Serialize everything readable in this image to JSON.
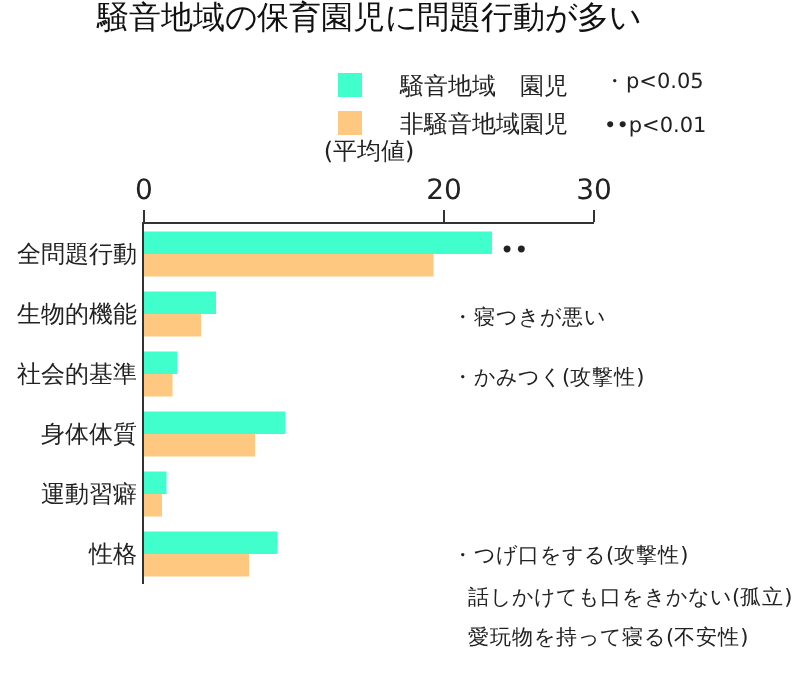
{
  "chart_data": {
    "type": "bar",
    "orientation": "horizontal",
    "title": "騒音地域の保育園児に問題行動が多い",
    "xlabel": "(平均値)",
    "categories": [
      "全問題行動",
      "生物的機能",
      "社会的基準",
      "身体体質",
      "運動習癖",
      "性格"
    ],
    "series": [
      {
        "name": "騒音地域　園児",
        "color": "#40ffcc",
        "values": [
          23.2,
          4.8,
          2.2,
          9.4,
          1.5,
          8.9
        ]
      },
      {
        "name": "非騒音地域園児",
        "color": "#ffc880",
        "values": [
          19.3,
          3.8,
          1.9,
          7.4,
          1.2,
          7.0
        ]
      }
    ],
    "xlim": [
      0,
      30
    ],
    "xticks": [
      0,
      20,
      30
    ],
    "grid": false,
    "legend": "top right",
    "annotations": [
      "••",
      "・寝つきが悪い",
      "・かみつく(攻撃性)",
      "・つげ口をする(攻撃性)",
      "話しかけても口をきかない(孤立)",
      "愛玩物を持って寝る(不安性)",
      "・p<0.05",
      "••p<0.01"
    ]
  }
}
